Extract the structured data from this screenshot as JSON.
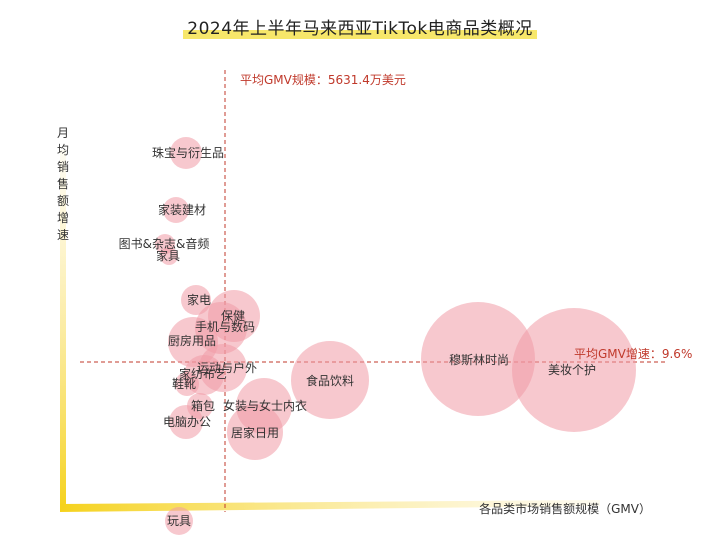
{
  "chart_data": {
    "type": "scatter",
    "title": "2024年上半年马来西亚TikTok电商品类概况",
    "xlabel": "各品类市场销售额规模（GMV）",
    "ylabel": "月均销售额增速",
    "reference_lines": [
      {
        "axis": "x",
        "label": "平均GMV规模：5631.4万美元"
      },
      {
        "axis": "y",
        "label": "平均GMV增速：9.6%"
      }
    ],
    "points": [
      {
        "name": "珠宝与衍生品"
      },
      {
        "name": "家装建材"
      },
      {
        "name": "图书&杂志&音频"
      },
      {
        "name": "家具"
      },
      {
        "name": "家电"
      },
      {
        "name": "保健"
      },
      {
        "name": "手机与数码"
      },
      {
        "name": "厨房用品"
      },
      {
        "name": "运动与户外"
      },
      {
        "name": "家纺布艺"
      },
      {
        "name": "鞋靴"
      },
      {
        "name": "箱包"
      },
      {
        "name": "女装与女士内衣"
      },
      {
        "name": "电脑办公"
      },
      {
        "name": "居家日用"
      },
      {
        "name": "食品饮料"
      },
      {
        "name": "穆斯林时尚"
      },
      {
        "name": "美妆个护"
      },
      {
        "name": "玩具"
      }
    ]
  }
}
